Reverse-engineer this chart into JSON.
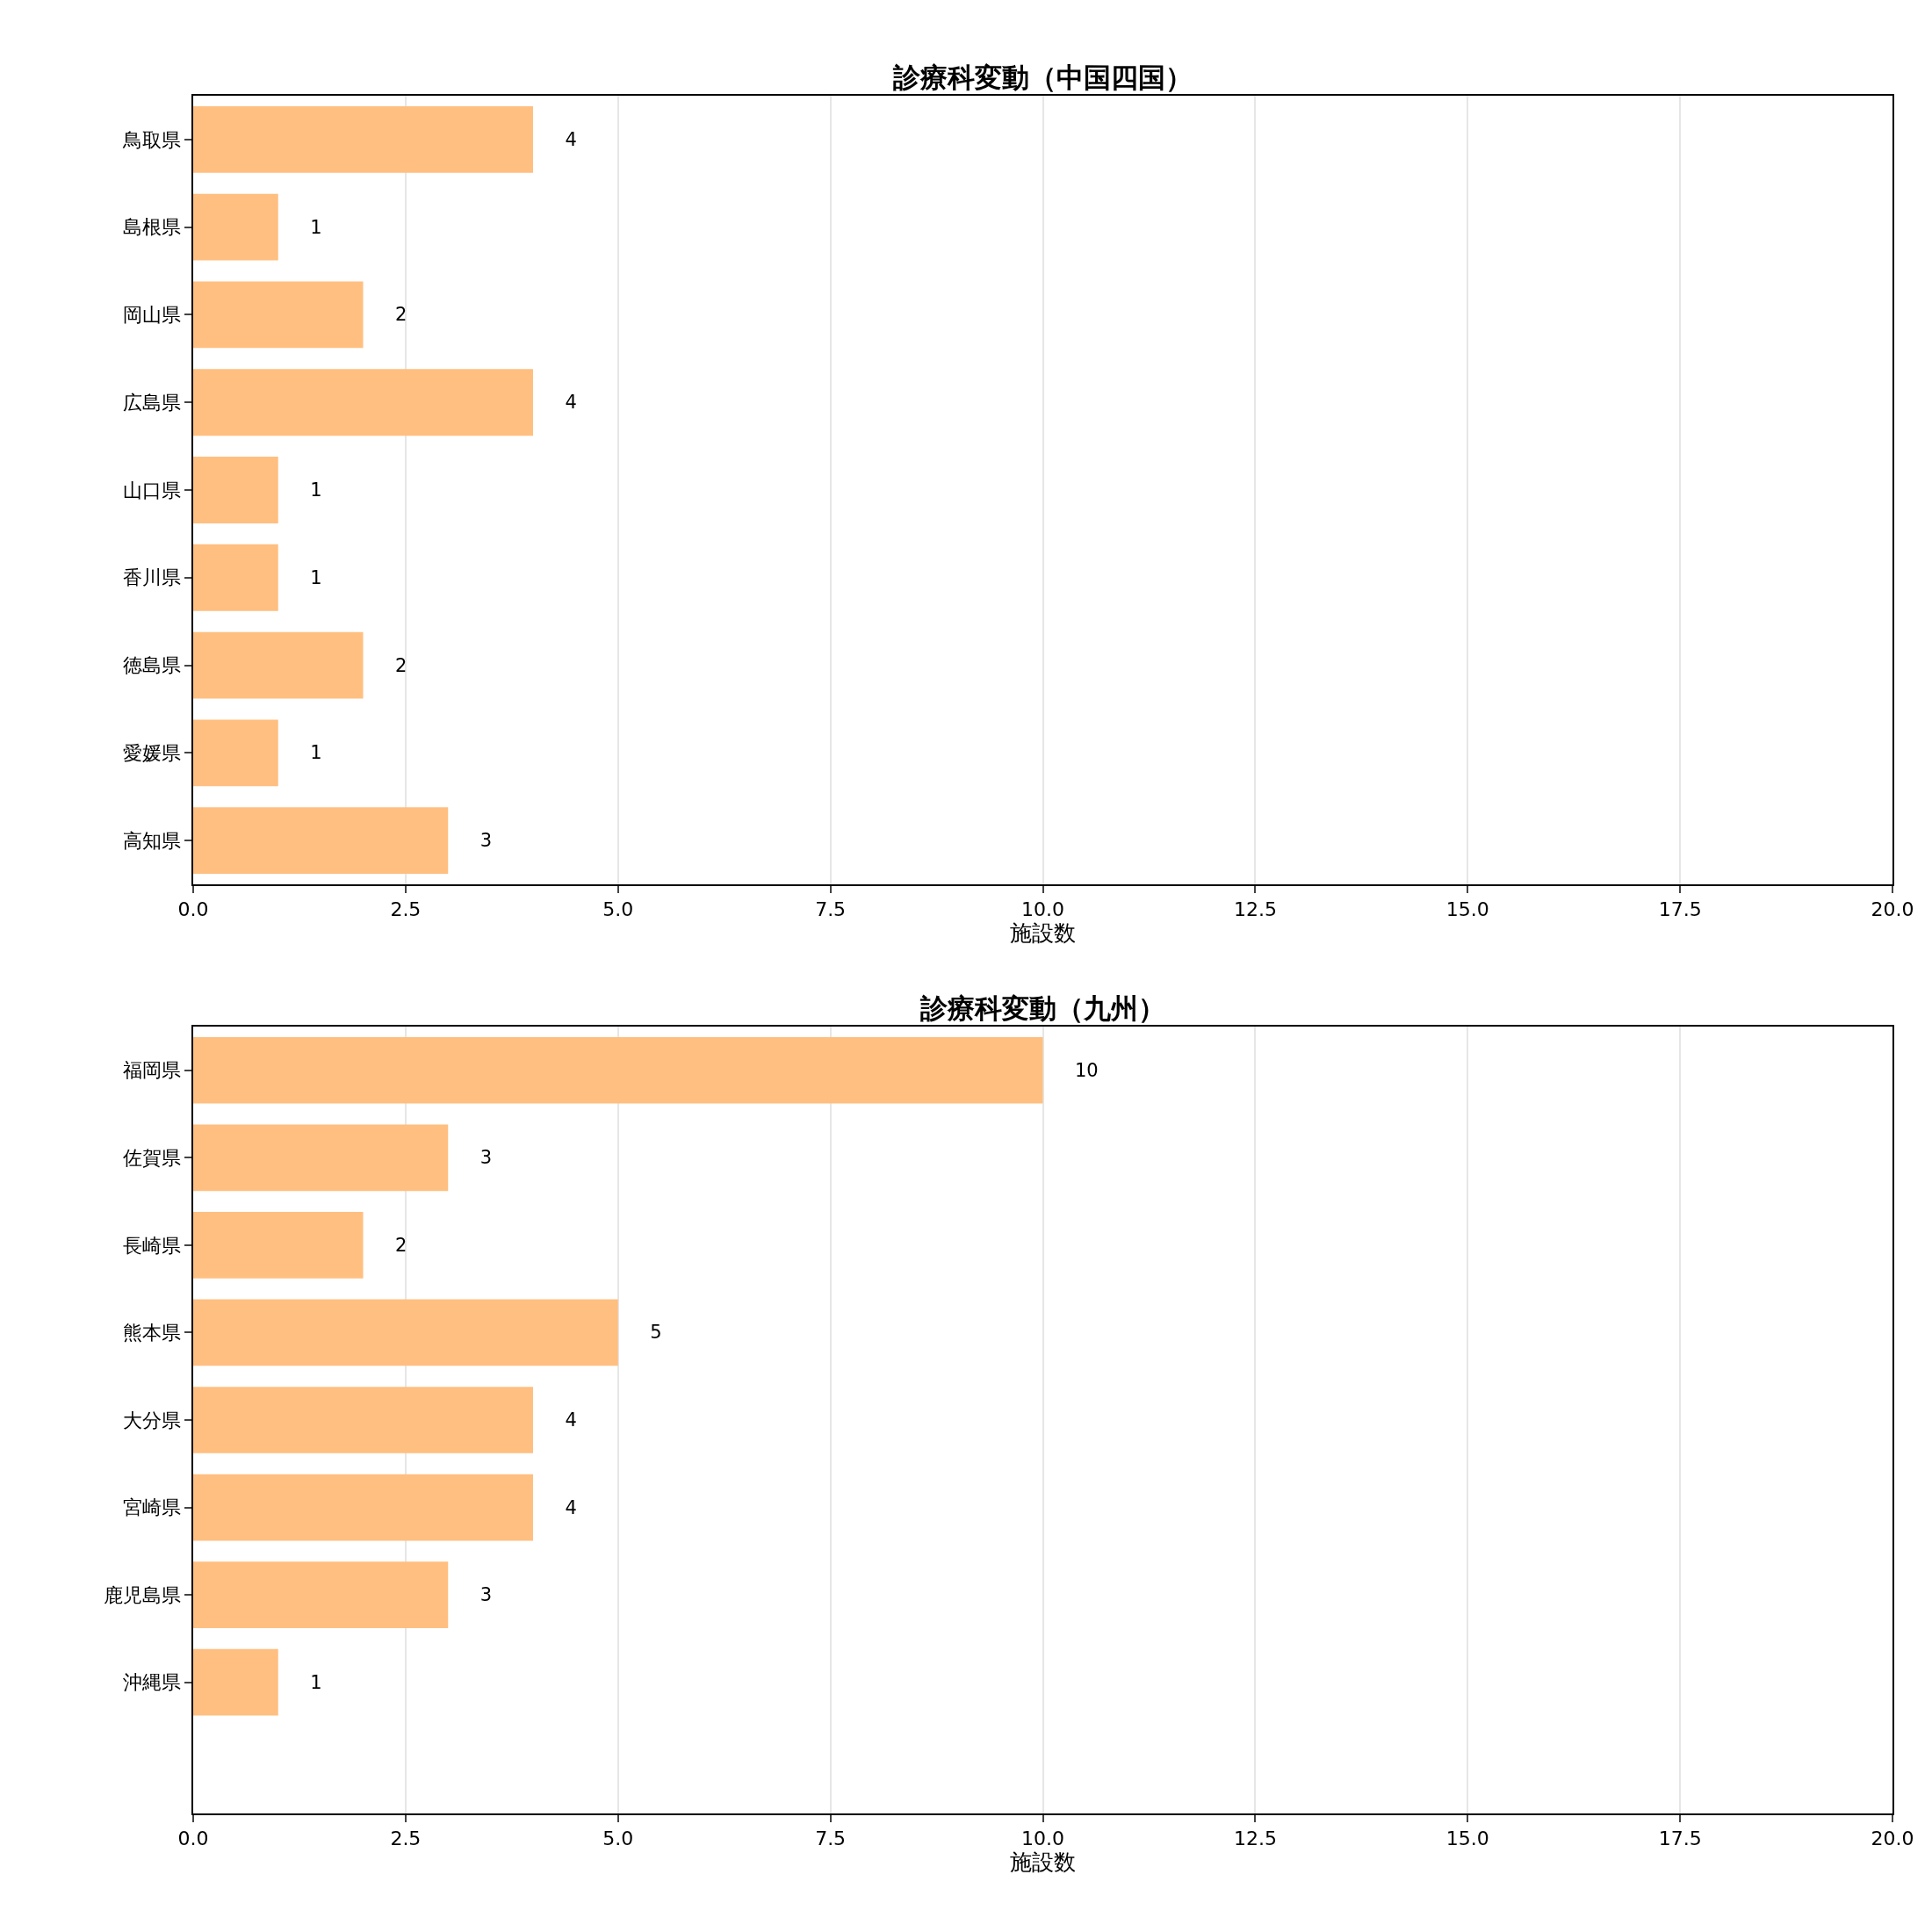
{
  "chart_data": [
    {
      "type": "bar",
      "orientation": "horizontal",
      "title": "診療科変動（中国四国）",
      "xlabel": "施設数",
      "categories": [
        "鳥取県",
        "島根県",
        "岡山県",
        "広島県",
        "山口県",
        "香川県",
        "徳島県",
        "愛媛県",
        "高知県"
      ],
      "values": [
        4,
        1,
        2,
        4,
        1,
        1,
        2,
        1,
        3
      ],
      "color": "#ffbf80",
      "xlim": [
        0,
        20
      ],
      "xticks": [
        {
          "value": 0,
          "label": "0.0"
        },
        {
          "value": 2.5,
          "label": "2.5"
        },
        {
          "value": 5,
          "label": "5.0"
        },
        {
          "value": 7.5,
          "label": "7.5"
        },
        {
          "value": 10,
          "label": "10.0"
        },
        {
          "value": 12.5,
          "label": "12.5"
        },
        {
          "value": 15,
          "label": "15.0"
        },
        {
          "value": 17.5,
          "label": "17.5"
        },
        {
          "value": 20,
          "label": "20.0"
        }
      ],
      "grid": "x",
      "data_labels": true
    },
    {
      "type": "bar",
      "orientation": "horizontal",
      "title": "診療科変動（九州）",
      "xlabel": "施設数",
      "categories": [
        "福岡県",
        "佐賀県",
        "長崎県",
        "熊本県",
        "大分県",
        "宮崎県",
        "鹿児島県",
        "沖縄県",
        null
      ],
      "values": [
        10,
        3,
        2,
        5,
        4,
        4,
        3,
        1,
        null
      ],
      "color": "#ffbf80",
      "xlim": [
        0,
        20
      ],
      "xticks": [
        {
          "value": 0,
          "label": "0.0"
        },
        {
          "value": 2.5,
          "label": "2.5"
        },
        {
          "value": 5,
          "label": "5.0"
        },
        {
          "value": 7.5,
          "label": "7.5"
        },
        {
          "value": 10,
          "label": "10.0"
        },
        {
          "value": 12.5,
          "label": "12.5"
        },
        {
          "value": 15,
          "label": "15.0"
        },
        {
          "value": 17.5,
          "label": "17.5"
        },
        {
          "value": 20,
          "label": "20.0"
        }
      ],
      "grid": "x",
      "data_labels": true
    }
  ]
}
